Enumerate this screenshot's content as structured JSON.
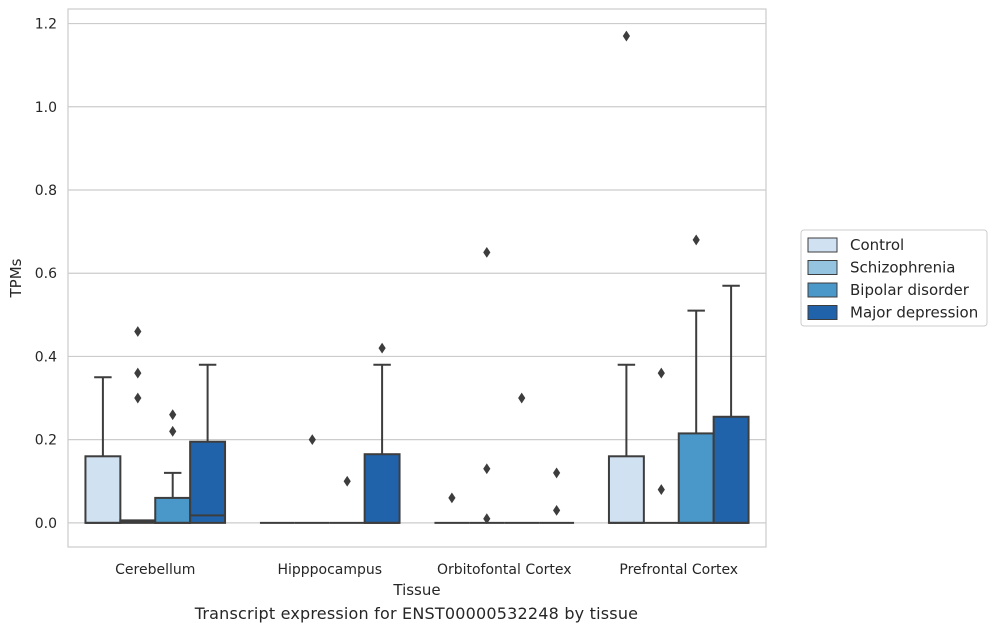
{
  "chart_data": {
    "type": "box",
    "title": "",
    "caption": "Transcript expression for ENST00000532248 by tissue",
    "xlabel": "Tissue",
    "ylabel": "TPMs",
    "ylim": [
      -0.058,
      1.235
    ],
    "yticks": [
      "0.0",
      "0.2",
      "0.4",
      "0.6",
      "0.8",
      "1.0",
      "1.2"
    ],
    "ytick_values": [
      0.0,
      0.2,
      0.4,
      0.6,
      0.8,
      1.0,
      1.2
    ],
    "grid": "horizontal",
    "legend_position": "right",
    "categories": [
      "Cerebellum",
      "Hipppocampus",
      "Orbitofontal Cortex",
      "Prefrontal Cortex"
    ],
    "series": [
      {
        "name": "Control",
        "color": "#d0e1f2",
        "boxes": [
          {
            "q1": 0.0,
            "median": 0.0,
            "q3": 0.16,
            "whisker_low": 0.0,
            "whisker_high": 0.35,
            "outliers": []
          },
          {
            "q1": 0.0,
            "median": 0.0,
            "q3": 0.0,
            "whisker_low": 0.0,
            "whisker_high": 0.0,
            "outliers": []
          },
          {
            "q1": 0.0,
            "median": 0.0,
            "q3": 0.0,
            "whisker_low": 0.0,
            "whisker_high": 0.0,
            "outliers": [
              0.06
            ]
          },
          {
            "q1": 0.0,
            "median": 0.0,
            "q3": 0.16,
            "whisker_low": 0.0,
            "whisker_high": 0.38,
            "outliers": [
              1.17
            ]
          }
        ]
      },
      {
        "name": "Schizophrenia",
        "color": "#94c4df",
        "boxes": [
          {
            "q1": 0.0,
            "median": 0.003,
            "q3": 0.006,
            "whisker_low": 0.0,
            "whisker_high": 0.006,
            "outliers": [
              0.46,
              0.36,
              0.3
            ]
          },
          {
            "q1": 0.0,
            "median": 0.0,
            "q3": 0.0,
            "whisker_low": 0.0,
            "whisker_high": 0.0,
            "outliers": [
              0.2
            ]
          },
          {
            "q1": 0.0,
            "median": 0.0,
            "q3": 0.0,
            "whisker_low": 0.0,
            "whisker_high": 0.0,
            "outliers": [
              0.65,
              0.13,
              0.01
            ]
          },
          {
            "q1": 0.0,
            "median": 0.0,
            "q3": 0.0,
            "whisker_low": 0.0,
            "whisker_high": 0.0,
            "outliers": [
              0.36,
              0.08
            ]
          }
        ]
      },
      {
        "name": "Bipolar disorder",
        "color": "#4a98c9",
        "boxes": [
          {
            "q1": 0.0,
            "median": 0.0,
            "q3": 0.06,
            "whisker_low": 0.0,
            "whisker_high": 0.12,
            "outliers": [
              0.26,
              0.22
            ]
          },
          {
            "q1": 0.0,
            "median": 0.0,
            "q3": 0.0,
            "whisker_low": 0.0,
            "whisker_high": 0.0,
            "outliers": [
              0.1
            ]
          },
          {
            "q1": 0.0,
            "median": 0.0,
            "q3": 0.0,
            "whisker_low": 0.0,
            "whisker_high": 0.0,
            "outliers": [
              0.3
            ]
          },
          {
            "q1": 0.0,
            "median": 0.0,
            "q3": 0.215,
            "whisker_low": 0.0,
            "whisker_high": 0.51,
            "outliers": [
              0.68
            ]
          }
        ]
      },
      {
        "name": "Major depression",
        "color": "#2163aa",
        "boxes": [
          {
            "q1": 0.0,
            "median": 0.018,
            "q3": 0.195,
            "whisker_low": 0.0,
            "whisker_high": 0.38,
            "outliers": []
          },
          {
            "q1": 0.0,
            "median": 0.0,
            "q3": 0.165,
            "whisker_low": 0.0,
            "whisker_high": 0.38,
            "outliers": [
              0.42
            ]
          },
          {
            "q1": 0.0,
            "median": 0.0,
            "q3": 0.0,
            "whisker_low": 0.0,
            "whisker_high": 0.0,
            "outliers": [
              0.12,
              0.03
            ]
          },
          {
            "q1": 0.0,
            "median": 0.0,
            "q3": 0.255,
            "whisker_low": 0.0,
            "whisker_high": 0.57,
            "outliers": []
          }
        ]
      }
    ]
  }
}
